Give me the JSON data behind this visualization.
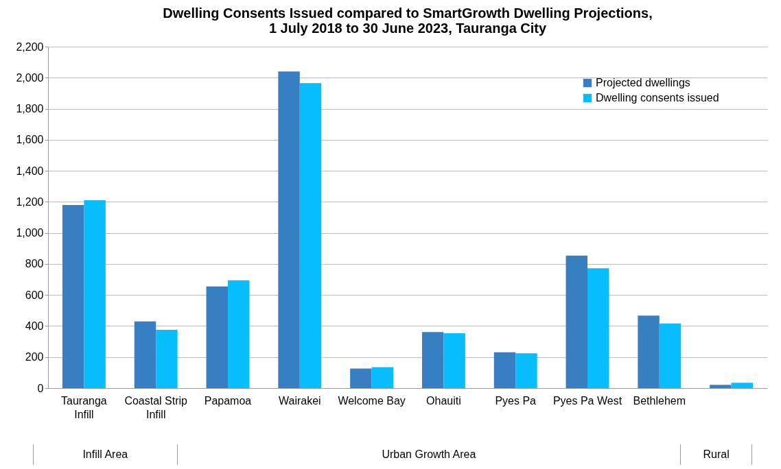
{
  "chart_data": {
    "type": "bar",
    "title": "Dwelling Consents Issued compared to SmartGrowth Dwelling Projections,\n1 July 2018 to 30 June 2023, Tauranga City",
    "categories": [
      "Tauranga Infill",
      "Coastal Strip Infill",
      "Papamoa",
      "Wairakei",
      "Welcome Bay",
      "Ohauiti",
      "Pyes Pa",
      "Pyes Pa West",
      "Bethlehem",
      null
    ],
    "series": [
      {
        "name": "Projected dwellings",
        "color": "#377fc2",
        "values": [
          1180,
          430,
          655,
          2040,
          126,
          361,
          231,
          854,
          467,
          21
        ]
      },
      {
        "name": "Dwelling consents issued",
        "color": "#07bdfc",
        "values": [
          1210,
          375,
          695,
          1965,
          135,
          353,
          224,
          772,
          416,
          34
        ]
      }
    ],
    "ylim": [
      0,
      2200
    ],
    "yticks": [
      0,
      200,
      400,
      600,
      800,
      {
        "value": 1000,
        "label": "1,000"
      },
      {
        "value": 1200,
        "label": "1,200"
      },
      {
        "value": 1400,
        "label": "1,400"
      },
      {
        "value": 1600,
        "label": "1,600"
      },
      {
        "value": 1800,
        "label": "1,800"
      },
      {
        "value": 2000,
        "label": "2,000"
      },
      {
        "value": 2200,
        "label": "2,200"
      }
    ],
    "grid": "y",
    "legend": "top right",
    "annotations": [
      "Infill Area",
      "Urban Growth Area",
      "Rural"
    ]
  }
}
